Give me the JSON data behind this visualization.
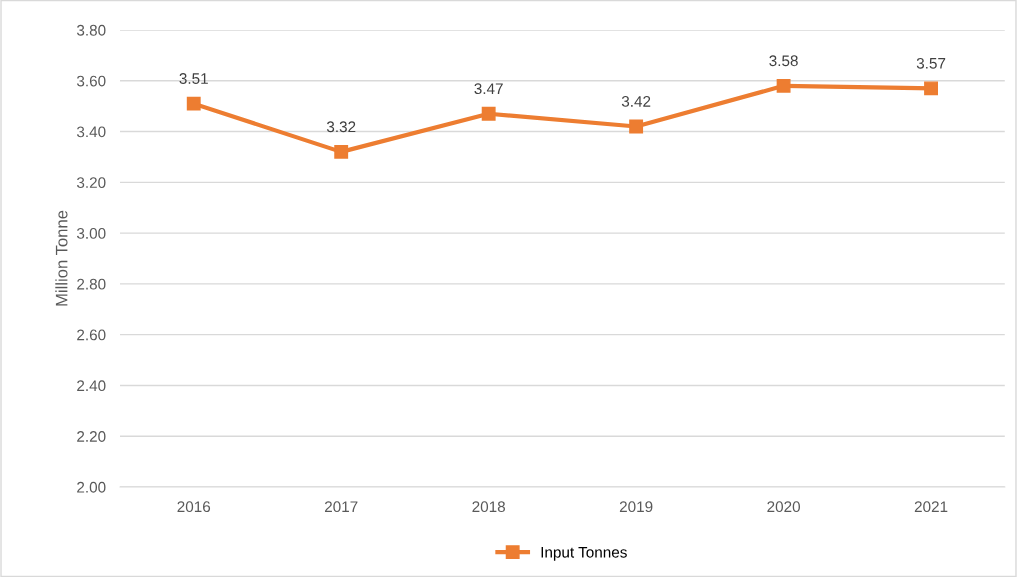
{
  "chart_data": {
    "type": "line",
    "ylabel": "Million Tonne",
    "categories": [
      "2016",
      "2017",
      "2018",
      "2019",
      "2020",
      "2021"
    ],
    "series": [
      {
        "name": "Input Tonnes",
        "color": "#ed7d31",
        "values": [
          3.51,
          3.32,
          3.47,
          3.42,
          3.58,
          3.57
        ]
      }
    ],
    "ylim": [
      2.0,
      3.8
    ],
    "yticks": [
      {
        "value": 2.0,
        "label": "2.00"
      },
      {
        "value": 2.2,
        "label": "2.20"
      },
      {
        "value": 2.4,
        "label": "2.40"
      },
      {
        "value": 2.6,
        "label": "2.60"
      },
      {
        "value": 2.8,
        "label": "2.80"
      },
      {
        "value": 3.0,
        "label": "3.00"
      },
      {
        "value": 3.2,
        "label": "3.20"
      },
      {
        "value": 3.4,
        "label": "3.40"
      },
      {
        "value": 3.6,
        "label": "3.60"
      },
      {
        "value": 3.8,
        "label": "3.80"
      }
    ],
    "grid": "y",
    "legend": "bottom",
    "marker": "square",
    "line_style": "solid",
    "data_labels": true
  }
}
